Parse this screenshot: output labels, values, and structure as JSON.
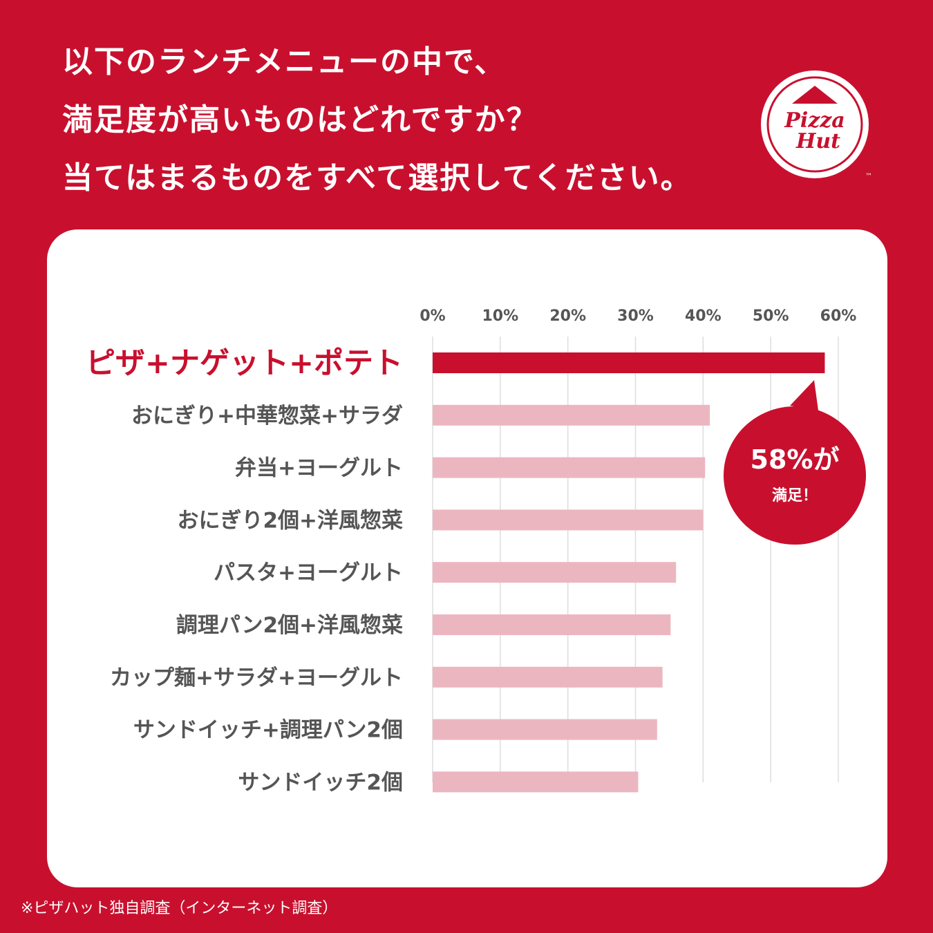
{
  "headline": {
    "line1": "以下のランチメニューの中で、",
    "line2": "満足度が高いものはどれですか？",
    "line3": "当てはまるものをすべて選択してください。"
  },
  "logo": {
    "line1": "Pizza",
    "line2": "Hut",
    "tm": "™"
  },
  "callout": {
    "value": "58%が",
    "text": "満足！"
  },
  "footnote": "※ピザハット独自調査（インターネット調査）",
  "colors": {
    "brand_red": "#c8102e",
    "bar_highlight": "#c8102e",
    "bar_other": "#ecb6c0",
    "label_text": "#555555",
    "grid": "#dddddd"
  },
  "chart_data": {
    "type": "bar",
    "orientation": "horizontal",
    "categories": [
      "ピザ+ナゲット+ポテト",
      "おにぎり+中華惣菜+サラダ",
      "弁当+ヨーグルト",
      "おにぎり2個+洋風惣菜",
      "パスタ+ヨーグルト",
      "調理パン2個+洋風惣菜",
      "カップ麺+サラダ+ヨーグルト",
      "サンドイッチ+調理パン2個",
      "サンドイッチ2個"
    ],
    "values": [
      58,
      41,
      40.3,
      40,
      36,
      35.2,
      34,
      33.2,
      30.4
    ],
    "highlight_index": 0,
    "xlim": [
      0,
      60
    ],
    "ticks": [
      0,
      10,
      20,
      30,
      40,
      50,
      60
    ],
    "tick_labels": [
      "0%",
      "10%",
      "20%",
      "30%",
      "40%",
      "50%",
      "60%"
    ],
    "grid": true,
    "axis_position": "top"
  }
}
